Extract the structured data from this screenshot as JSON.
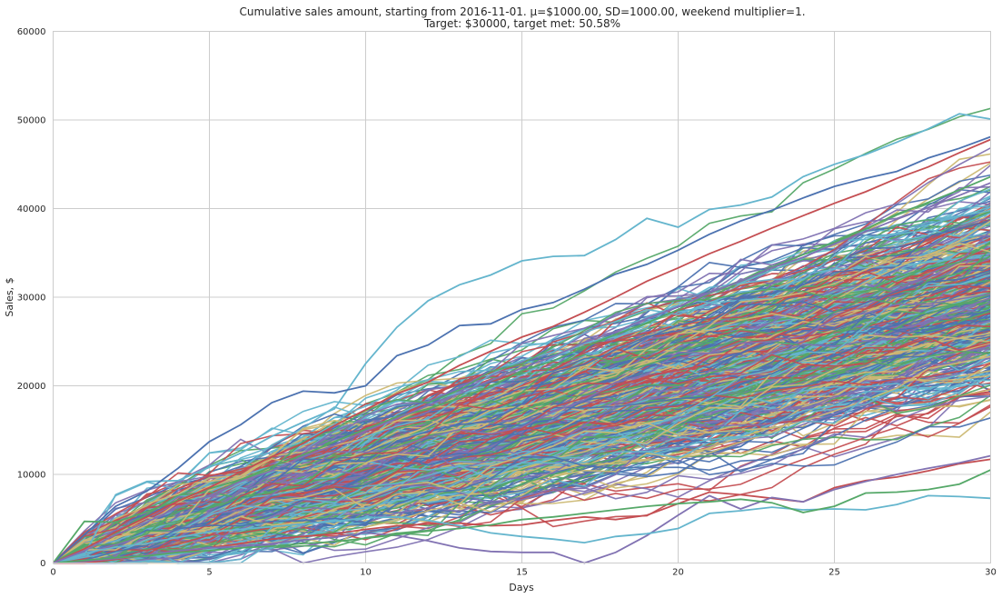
{
  "chart_data": {
    "type": "line",
    "title": "Cumulative sales amount, starting from 2016-11-01. μ=$1000.00, SD=1000.00, weekend multiplier=1.",
    "subtitle": "Target: $30000, target met: 50.58%",
    "xlabel": "Days",
    "ylabel": "Sales, $",
    "xlim": [
      0,
      30
    ],
    "ylim": [
      0,
      60000
    ],
    "xticks": [
      "0",
      "5",
      "10",
      "15",
      "20",
      "25",
      "30"
    ],
    "yticks": [
      "0",
      "10000",
      "20000",
      "30000",
      "40000",
      "50000",
      "60000"
    ],
    "grid": true,
    "colors": [
      "#4c72b0",
      "#55a868",
      "#c44e52",
      "#8172b2",
      "#ccb974",
      "#64b5cd"
    ],
    "simulation": {
      "runs": 1000,
      "days": 30,
      "mean": 1000,
      "sd": 1000,
      "weekend_multiplier": 1,
      "target": 30000,
      "target_met_percent": 50.58
    },
    "series": [
      {
        "x": [
          0,
          1,
          2,
          3,
          4,
          5,
          6,
          7,
          8,
          9,
          10,
          11,
          12,
          13,
          14,
          15,
          16,
          17,
          18,
          19,
          20,
          21,
          22,
          23,
          24,
          25,
          26,
          27,
          28,
          29,
          30
        ],
        "values": [
          0,
          900,
          7700,
          9200,
          9300,
          10800,
          12400,
          14300,
          15900,
          17400,
          22500,
          26600,
          29600,
          31400,
          32500,
          34100,
          34600,
          34700,
          36500,
          38900,
          37900,
          39900,
          40400,
          41300,
          43600,
          45000,
          46100,
          47500,
          49000,
          50700,
          50100
        ]
      },
      {
        "x": [
          0,
          1,
          2,
          3,
          4,
          5,
          6,
          7,
          8,
          9,
          10,
          11,
          12,
          13,
          14,
          15,
          16,
          17,
          18,
          19,
          20,
          21,
          22,
          23,
          24,
          25,
          26,
          27,
          28,
          29,
          30
        ],
        "values": [
          0,
          3200,
          6400,
          8100,
          10700,
          13700,
          15600,
          18100,
          19400,
          19200,
          20000,
          23400,
          24600,
          26800,
          27000,
          28600,
          29400,
          30900,
          32600,
          33700,
          35300,
          37100,
          38600,
          39800,
          41200,
          42500,
          43400,
          44200,
          45700,
          46800,
          48100
        ]
      },
      {
        "x": [
          0,
          1,
          2,
          3,
          4,
          5,
          6,
          7,
          8,
          9,
          10,
          11,
          12,
          13,
          14,
          15,
          16,
          17,
          18,
          19,
          20,
          21,
          22,
          23,
          24,
          25,
          26,
          27,
          28,
          29,
          30
        ],
        "values": [
          0,
          4700,
          4600,
          5800,
          7100,
          8400,
          9400,
          10900,
          12200,
          13700,
          15100,
          16500,
          17400,
          18600,
          19900,
          21700,
          22800,
          24400,
          25800,
          27100,
          28600,
          30400,
          31800,
          33400,
          34800,
          36200,
          37700,
          39400,
          40700,
          42100,
          43600
        ]
      },
      {
        "x": [
          0,
          1,
          2,
          3,
          4,
          5,
          6,
          7,
          8,
          9,
          10,
          11,
          12,
          13,
          14,
          15,
          16,
          17,
          18,
          19,
          20,
          21,
          22,
          23,
          24,
          25,
          26,
          27,
          28,
          29,
          30
        ],
        "values": [
          0,
          0,
          400,
          900,
          1300,
          1700,
          2200,
          2700,
          3000,
          3300,
          3800,
          4200,
          4400,
          4500,
          4200,
          4300,
          4800,
          5200,
          4900,
          5400,
          6700,
          8000,
          7700,
          7300,
          6900,
          8500,
          9300,
          9700,
          10400,
          11200,
          11700
        ]
      },
      {
        "x": [
          0,
          1,
          2,
          3,
          4,
          5,
          6,
          7,
          8,
          9,
          10,
          11,
          12,
          13,
          14,
          15,
          16,
          17,
          18,
          19,
          20,
          21,
          22,
          23,
          24,
          25,
          26,
          27,
          28,
          29,
          30
        ],
        "values": [
          0,
          200,
          500,
          900,
          1400,
          1700,
          1900,
          2200,
          2600,
          2900,
          3400,
          3100,
          2500,
          1700,
          1300,
          1200,
          1200,
          0,
          1200,
          3100,
          5400,
          7600,
          6100,
          7400,
          6900,
          8300,
          9200,
          10000,
          10700,
          11300,
          12100
        ]
      },
      {
        "x": [
          0,
          1,
          2,
          3,
          4,
          5,
          6,
          7,
          8,
          9,
          10,
          11,
          12,
          13,
          14,
          15,
          16,
          17,
          18,
          19,
          20,
          21,
          22,
          23,
          24,
          25,
          26,
          27,
          28,
          29,
          30
        ],
        "values": [
          0,
          1100,
          1800,
          2200,
          2900,
          3500,
          3800,
          4100,
          4400,
          4700,
          5100,
          5200,
          4800,
          4200,
          3400,
          3000,
          2700,
          2300,
          3000,
          3300,
          3900,
          5600,
          5900,
          6300,
          6000,
          6100,
          6000,
          6600,
          7600,
          7500,
          7300
        ]
      },
      {
        "x": [
          0,
          1,
          2,
          3,
          4,
          5,
          6,
          7,
          8,
          9,
          10,
          11,
          12,
          13,
          14,
          15,
          16,
          17,
          18,
          19,
          20,
          21,
          22,
          23,
          24,
          25,
          26,
          27,
          28,
          29,
          30
        ],
        "values": [
          0,
          300,
          600,
          800,
          1200,
          1400,
          1700,
          1900,
          2200,
          2400,
          2800,
          3200,
          3600,
          3900,
          4300,
          4900,
          5200,
          5600,
          6000,
          6400,
          6700,
          6900,
          7200,
          6800,
          5700,
          6400,
          7900,
          8000,
          8300,
          8900,
          10500
        ]
      },
      {
        "x": [
          0,
          1,
          2,
          3,
          4,
          5,
          6,
          7,
          8,
          9,
          10,
          11,
          12,
          13,
          14,
          15,
          16,
          17,
          18,
          19,
          20,
          21,
          22,
          23,
          24,
          25,
          26,
          27,
          28,
          29,
          30
        ],
        "values": [
          0,
          1600,
          3500,
          5200,
          7000,
          8500,
          10300,
          12000,
          13500,
          15500,
          17300,
          19100,
          20400,
          22300,
          23900,
          25500,
          26700,
          28300,
          30000,
          31800,
          33300,
          34900,
          36300,
          37800,
          39200,
          40600,
          41900,
          43400,
          44700,
          46300,
          47800
        ]
      },
      {
        "x": [
          0,
          1,
          2,
          3,
          4,
          5,
          6,
          7,
          8,
          9,
          10,
          11,
          12,
          13,
          14,
          15,
          16,
          17,
          18,
          19,
          20,
          21,
          22,
          23,
          24,
          25,
          26,
          27,
          28,
          29,
          30
        ],
        "values": [
          0,
          1400,
          3200,
          4600,
          6300,
          7600,
          9200,
          10400,
          12000,
          13300,
          14900,
          16300,
          17800,
          19100,
          20600,
          22000,
          23300,
          24900,
          26100,
          27600,
          28900,
          30500,
          31800,
          33300,
          34500,
          36000,
          37400,
          38800,
          40100,
          41500,
          42900
        ]
      }
    ]
  }
}
